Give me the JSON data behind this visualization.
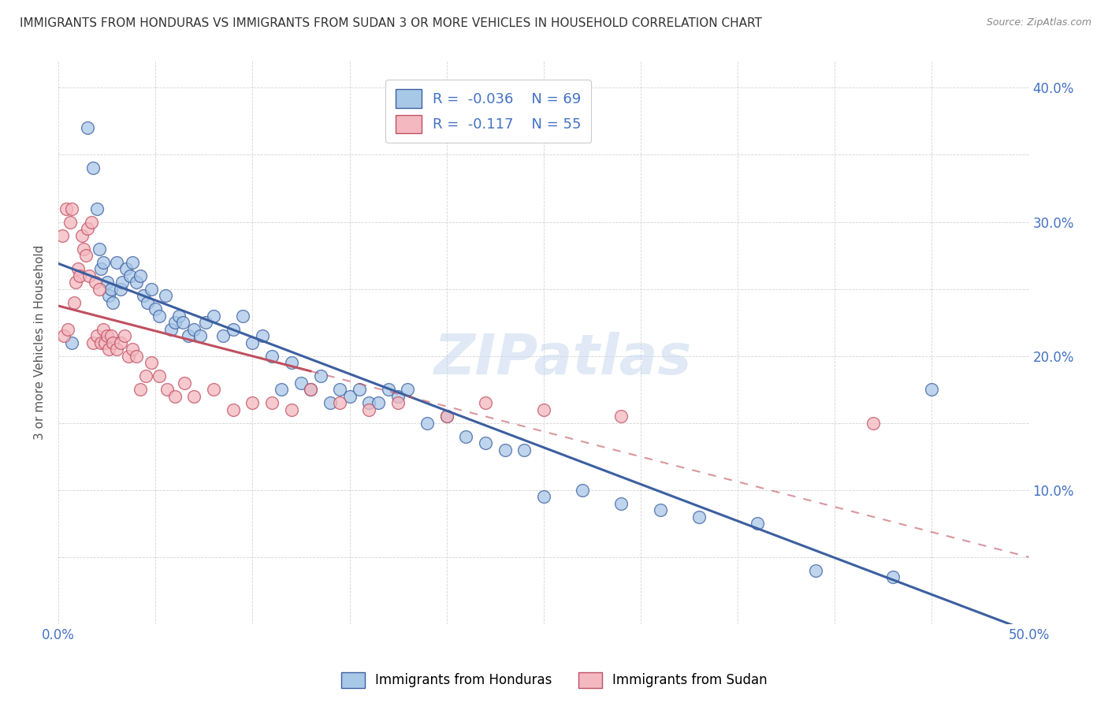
{
  "title": "IMMIGRANTS FROM HONDURAS VS IMMIGRANTS FROM SUDAN 3 OR MORE VEHICLES IN HOUSEHOLD CORRELATION CHART",
  "source": "Source: ZipAtlas.com",
  "ylabel": "3 or more Vehicles in Household",
  "xlim": [
    0.0,
    0.5
  ],
  "ylim": [
    0.0,
    0.42
  ],
  "xticks": [
    0.0,
    0.05,
    0.1,
    0.15,
    0.2,
    0.25,
    0.3,
    0.35,
    0.4,
    0.45,
    0.5
  ],
  "yticks": [
    0.0,
    0.05,
    0.1,
    0.15,
    0.2,
    0.25,
    0.3,
    0.35,
    0.4
  ],
  "legend_r1": "R =  -0.036",
  "legend_n1": "N = 69",
  "legend_r2": "R =  -0.117",
  "legend_n2": "N = 55",
  "color_honduras": "#a8c8e8",
  "color_sudan": "#f4b8c0",
  "color_trend_honduras": "#3c5fa0",
  "color_trend_sudan": "#c05060",
  "watermark": "ZIPatlas",
  "honduras_x": [
    0.007,
    0.015,
    0.018,
    0.02,
    0.021,
    0.022,
    0.023,
    0.025,
    0.026,
    0.027,
    0.028,
    0.03,
    0.032,
    0.033,
    0.035,
    0.037,
    0.038,
    0.04,
    0.042,
    0.044,
    0.046,
    0.048,
    0.05,
    0.052,
    0.055,
    0.058,
    0.06,
    0.062,
    0.064,
    0.067,
    0.07,
    0.073,
    0.076,
    0.08,
    0.085,
    0.09,
    0.095,
    0.1,
    0.105,
    0.11,
    0.115,
    0.12,
    0.125,
    0.13,
    0.135,
    0.14,
    0.145,
    0.15,
    0.155,
    0.16,
    0.165,
    0.17,
    0.175,
    0.18,
    0.19,
    0.2,
    0.21,
    0.22,
    0.23,
    0.24,
    0.25,
    0.27,
    0.29,
    0.31,
    0.33,
    0.36,
    0.39,
    0.43,
    0.45
  ],
  "honduras_y": [
    0.21,
    0.37,
    0.34,
    0.31,
    0.28,
    0.265,
    0.27,
    0.255,
    0.245,
    0.25,
    0.24,
    0.27,
    0.25,
    0.255,
    0.265,
    0.26,
    0.27,
    0.255,
    0.26,
    0.245,
    0.24,
    0.25,
    0.235,
    0.23,
    0.245,
    0.22,
    0.225,
    0.23,
    0.225,
    0.215,
    0.22,
    0.215,
    0.225,
    0.23,
    0.215,
    0.22,
    0.23,
    0.21,
    0.215,
    0.2,
    0.175,
    0.195,
    0.18,
    0.175,
    0.185,
    0.165,
    0.175,
    0.17,
    0.175,
    0.165,
    0.165,
    0.175,
    0.17,
    0.175,
    0.15,
    0.155,
    0.14,
    0.135,
    0.13,
    0.13,
    0.095,
    0.1,
    0.09,
    0.085,
    0.08,
    0.075,
    0.04,
    0.035,
    0.175
  ],
  "sudan_x": [
    0.002,
    0.003,
    0.004,
    0.005,
    0.006,
    0.007,
    0.008,
    0.009,
    0.01,
    0.011,
    0.012,
    0.013,
    0.014,
    0.015,
    0.016,
    0.017,
    0.018,
    0.019,
    0.02,
    0.021,
    0.022,
    0.023,
    0.024,
    0.025,
    0.026,
    0.027,
    0.028,
    0.03,
    0.032,
    0.034,
    0.036,
    0.038,
    0.04,
    0.042,
    0.045,
    0.048,
    0.052,
    0.056,
    0.06,
    0.065,
    0.07,
    0.08,
    0.09,
    0.1,
    0.11,
    0.12,
    0.13,
    0.145,
    0.16,
    0.175,
    0.2,
    0.22,
    0.25,
    0.29,
    0.42
  ],
  "sudan_y": [
    0.29,
    0.215,
    0.31,
    0.22,
    0.3,
    0.31,
    0.24,
    0.255,
    0.265,
    0.26,
    0.29,
    0.28,
    0.275,
    0.295,
    0.26,
    0.3,
    0.21,
    0.255,
    0.215,
    0.25,
    0.21,
    0.22,
    0.21,
    0.215,
    0.205,
    0.215,
    0.21,
    0.205,
    0.21,
    0.215,
    0.2,
    0.205,
    0.2,
    0.175,
    0.185,
    0.195,
    0.185,
    0.175,
    0.17,
    0.18,
    0.17,
    0.175,
    0.16,
    0.165,
    0.165,
    0.16,
    0.175,
    0.165,
    0.16,
    0.165,
    0.155,
    0.165,
    0.16,
    0.155,
    0.15
  ]
}
